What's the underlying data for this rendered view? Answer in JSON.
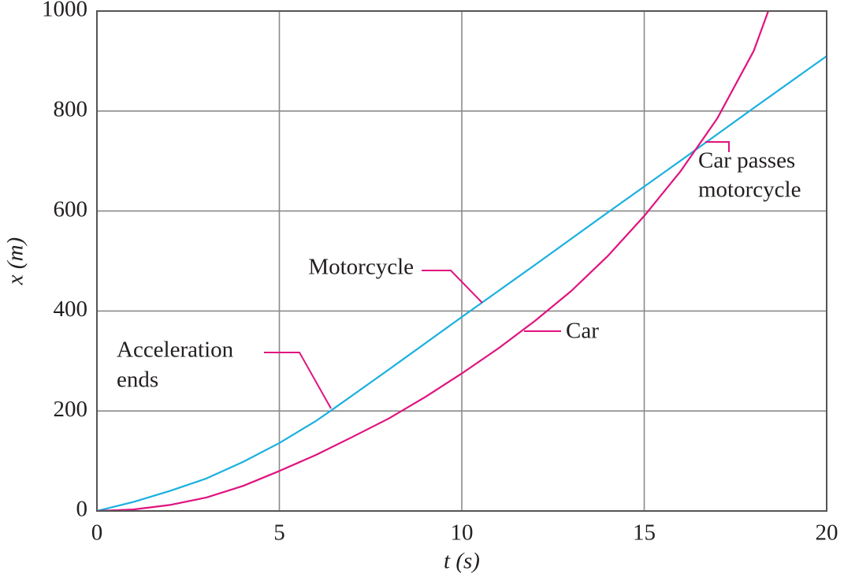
{
  "chart_data": {
    "type": "line",
    "xlabel": "t (s)",
    "ylabel": "x (m)",
    "xlim": [
      0,
      20
    ],
    "ylim": [
      0,
      1000
    ],
    "xticks": [
      0,
      5,
      10,
      15,
      20
    ],
    "yticks": [
      0,
      200,
      400,
      600,
      800,
      1000
    ],
    "grid": true,
    "series": [
      {
        "name": "Motorcycle",
        "color": "#1ab0e0",
        "x": [
          0,
          1,
          2,
          3,
          4,
          5,
          6,
          6.4,
          8,
          10,
          12,
          14,
          16,
          18,
          20
        ],
        "values": [
          0,
          18,
          40,
          65,
          98,
          136,
          180,
          200,
          283,
          388,
          492,
          597,
          701,
          806,
          910
        ]
      },
      {
        "name": "Car",
        "color": "#e0137f",
        "x": [
          0,
          1,
          2,
          3,
          4,
          5,
          6,
          7,
          8,
          9,
          10,
          11,
          12,
          13,
          14,
          15,
          16,
          17,
          18,
          18.4
        ],
        "values": [
          0,
          3,
          12,
          27,
          50,
          80,
          112,
          148,
          185,
          228,
          275,
          325,
          380,
          440,
          510,
          590,
          680,
          785,
          920,
          1000
        ]
      }
    ],
    "annotations": [
      {
        "lines": [
          "Acceleration",
          "ends"
        ]
      },
      {
        "lines": [
          "Car passes",
          "motorcycle"
        ]
      }
    ]
  }
}
